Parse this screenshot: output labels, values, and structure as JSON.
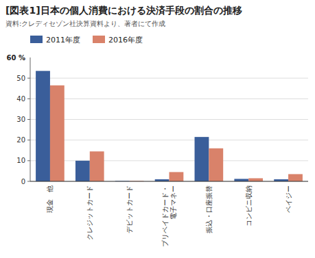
{
  "chart_data": {
    "type": "bar",
    "title": "[図表1]日本の個人消費における決済手段の割合の推移",
    "subtitle": "資料:クレディセゾン社決算資料より、著者にて作成",
    "ylabel": "60 %",
    "categories": [
      "現金　他",
      "クレジットカード",
      "デビットカード",
      "プリペイドカード・\n電子マネー",
      "振込・口座振替",
      "コンビニ収納",
      "ペイジー"
    ],
    "series": [
      {
        "name": "2011年度",
        "color": "#3A5E9A",
        "values": [
          53.5,
          10.0,
          0.2,
          1.0,
          21.5,
          1.2,
          1.0
        ]
      },
      {
        "name": "2016年度",
        "color": "#D9826A",
        "values": [
          46.5,
          14.5,
          0.2,
          4.5,
          16.0,
          1.5,
          3.5
        ]
      }
    ],
    "ylim": [
      0,
      60
    ],
    "yticks": [
      0,
      10,
      20,
      30,
      40,
      50
    ],
    "grid": true,
    "legend": "top"
  }
}
